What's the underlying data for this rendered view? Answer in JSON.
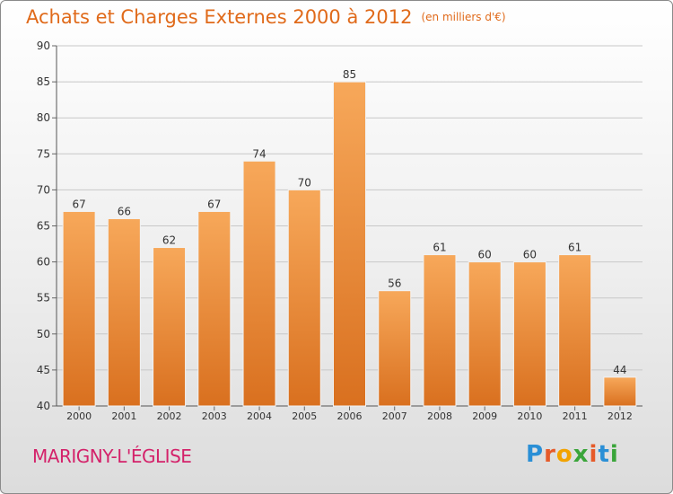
{
  "chart_data": {
    "type": "bar",
    "title": "Achats et Charges Externes 2000 à 2012",
    "subtitle": "(en milliers d'€)",
    "categories": [
      "2000",
      "2001",
      "2002",
      "2003",
      "2004",
      "2005",
      "2006",
      "2007",
      "2008",
      "2009",
      "2010",
      "2011",
      "2012"
    ],
    "values": [
      67,
      66,
      62,
      67,
      74,
      70,
      85,
      56,
      61,
      60,
      60,
      61,
      44
    ],
    "ylim": [
      40,
      90
    ],
    "yticks": [
      40,
      45,
      50,
      55,
      60,
      65,
      70,
      75,
      80,
      85,
      90
    ],
    "grid": true,
    "bar_color_top": "#f7a85a",
    "bar_color_bottom": "#d9701f"
  },
  "footer": {
    "commune": "MARIGNY-L'ÉGLISE",
    "logo": "Proxiti"
  },
  "colors": {
    "title": "#e06a1a",
    "commune": "#d4226a"
  }
}
